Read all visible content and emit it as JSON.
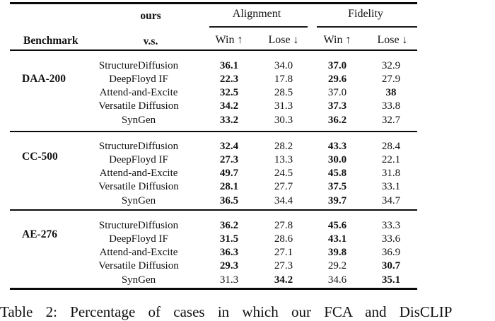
{
  "table": {
    "header": {
      "benchmark": "Benchmark",
      "ours": "ours",
      "vs": "v.s.",
      "group_alignment": "Alignment",
      "group_fidelity": "Fidelity",
      "win": "Win ↑",
      "lose": "Lose ↓"
    },
    "blocks": [
      {
        "benchmark": "DAA-200",
        "rows": [
          {
            "model": "StructureDiffusion",
            "cells": [
              {
                "v": "36.1",
                "b": true
              },
              {
                "v": "34.0",
                "b": false
              },
              {
                "v": "37.0",
                "b": true
              },
              {
                "v": "32.9",
                "b": false
              }
            ]
          },
          {
            "model": "DeepFloyd IF",
            "cells": [
              {
                "v": "22.3",
                "b": true
              },
              {
                "v": "17.8",
                "b": false
              },
              {
                "v": "29.6",
                "b": true
              },
              {
                "v": "27.9",
                "b": false
              }
            ]
          },
          {
            "model": "Attend-and-Excite",
            "cells": [
              {
                "v": "32.5",
                "b": true
              },
              {
                "v": "28.5",
                "b": false
              },
              {
                "v": "37.0",
                "b": false
              },
              {
                "v": "38",
                "b": true
              }
            ]
          },
          {
            "model": "Versatile Diffusion",
            "cells": [
              {
                "v": "34.2",
                "b": true
              },
              {
                "v": "31.3",
                "b": false
              },
              {
                "v": "37.3",
                "b": true
              },
              {
                "v": "33.8",
                "b": false
              }
            ]
          },
          {
            "model": "SynGen",
            "cells": [
              {
                "v": "33.2",
                "b": true
              },
              {
                "v": "30.3",
                "b": false
              },
              {
                "v": "36.2",
                "b": true
              },
              {
                "v": "32.7",
                "b": false
              }
            ]
          }
        ]
      },
      {
        "benchmark": "CC-500",
        "rows": [
          {
            "model": "StructureDiffusion",
            "cells": [
              {
                "v": "32.4",
                "b": true
              },
              {
                "v": "28.2",
                "b": false
              },
              {
                "v": "43.3",
                "b": true
              },
              {
                "v": "28.4",
                "b": false
              }
            ]
          },
          {
            "model": "DeepFloyd IF",
            "cells": [
              {
                "v": "27.3",
                "b": true
              },
              {
                "v": "13.3",
                "b": false
              },
              {
                "v": "30.0",
                "b": true
              },
              {
                "v": "22.1",
                "b": false
              }
            ]
          },
          {
            "model": "Attend-and-Excite",
            "cells": [
              {
                "v": "49.7",
                "b": true
              },
              {
                "v": "24.5",
                "b": false
              },
              {
                "v": "45.8",
                "b": true
              },
              {
                "v": "31.8",
                "b": false
              }
            ]
          },
          {
            "model": "Versatile Diffusion",
            "cells": [
              {
                "v": "28.1",
                "b": true
              },
              {
                "v": "27.7",
                "b": false
              },
              {
                "v": "37.5",
                "b": true
              },
              {
                "v": "33.1",
                "b": false
              }
            ]
          },
          {
            "model": "SynGen",
            "cells": [
              {
                "v": "36.5",
                "b": true
              },
              {
                "v": "34.4",
                "b": false
              },
              {
                "v": "39.7",
                "b": true
              },
              {
                "v": "34.7",
                "b": false
              }
            ]
          }
        ]
      },
      {
        "benchmark": "AE-276",
        "rows": [
          {
            "model": "StructureDiffusion",
            "cells": [
              {
                "v": "36.2",
                "b": true
              },
              {
                "v": "27.8",
                "b": false
              },
              {
                "v": "45.6",
                "b": true
              },
              {
                "v": "33.3",
                "b": false
              }
            ]
          },
          {
            "model": "DeepFloyd IF",
            "cells": [
              {
                "v": "31.5",
                "b": true
              },
              {
                "v": "28.6",
                "b": false
              },
              {
                "v": "43.1",
                "b": true
              },
              {
                "v": "33.6",
                "b": false
              }
            ]
          },
          {
            "model": "Attend-and-Excite",
            "cells": [
              {
                "v": "36.3",
                "b": true
              },
              {
                "v": "27.1",
                "b": false
              },
              {
                "v": "39.8",
                "b": true
              },
              {
                "v": "36.9",
                "b": false
              }
            ]
          },
          {
            "model": "Versatile Diffusion",
            "cells": [
              {
                "v": "29.3",
                "b": true
              },
              {
                "v": "27.3",
                "b": false
              },
              {
                "v": "29.2",
                "b": false
              },
              {
                "v": "30.7",
                "b": true
              }
            ]
          },
          {
            "model": "SynGen",
            "cells": [
              {
                "v": "31.3",
                "b": false
              },
              {
                "v": "34.2",
                "b": true
              },
              {
                "v": "34.6",
                "b": false
              },
              {
                "v": "35.1",
                "b": true
              }
            ]
          }
        ]
      }
    ]
  },
  "caption": "Table 2: Percentage of cases in which our FCA and DisCLIP",
  "colors": {
    "text": "#121212",
    "rule": "#0a0a0a",
    "background": "#ffffff"
  }
}
